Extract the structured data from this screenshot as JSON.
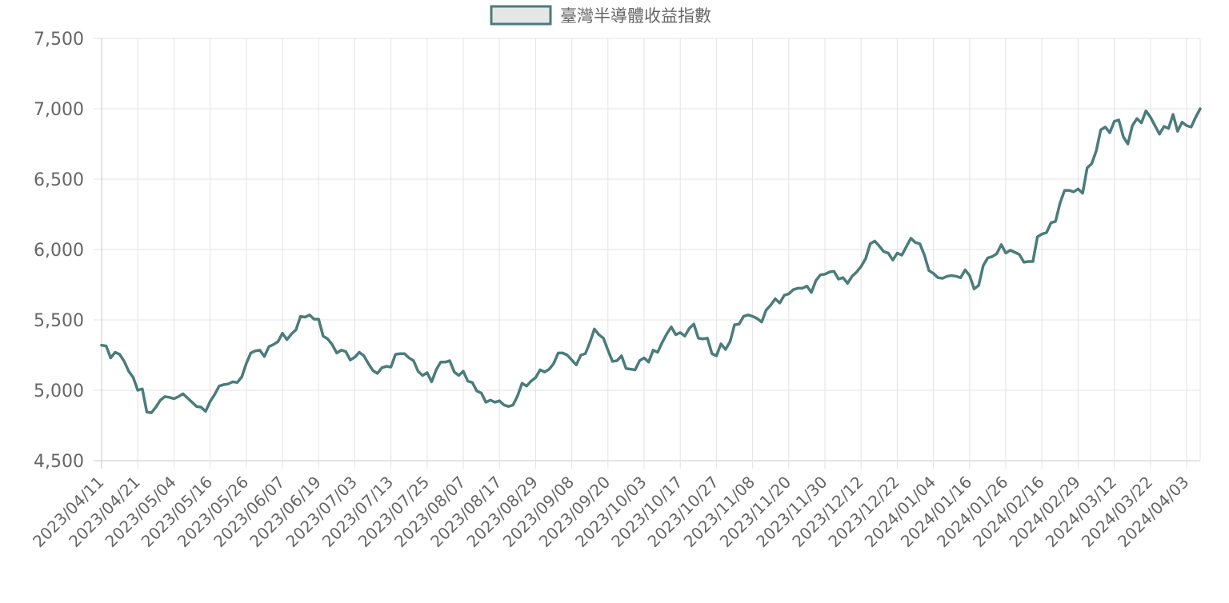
{
  "chart_data": {
    "type": "line",
    "legend": {
      "position": "top",
      "entry": "臺灣半導體收益指數"
    },
    "colors": {
      "line": "#4a7c7b",
      "legend_fill": "#e6e6e6",
      "grid": "#e3e3e3",
      "text": "#666666"
    },
    "grid": true,
    "ylim": [
      4500,
      7500
    ],
    "yticks": [
      {
        "value": 7500,
        "label": "7,500"
      },
      {
        "value": 7000,
        "label": "7,000"
      },
      {
        "value": 6500,
        "label": "6,500"
      },
      {
        "value": 6000,
        "label": "6,000"
      },
      {
        "value": 5500,
        "label": "5,500"
      },
      {
        "value": 5000,
        "label": "5,000"
      },
      {
        "value": 4500,
        "label": "4,500"
      }
    ],
    "xticks": [
      "2023/04/11",
      "2023/04/21",
      "2023/05/04",
      "2023/05/16",
      "2023/05/26",
      "2023/06/07",
      "2023/06/19",
      "2023/07/03",
      "2023/07/13",
      "2023/07/25",
      "2023/08/07",
      "2023/08/17",
      "2023/08/29",
      "2023/09/08",
      "2023/09/20",
      "2023/10/03",
      "2023/10/17",
      "2023/10/27",
      "2023/11/08",
      "2023/11/20",
      "2023/11/30",
      "2023/12/12",
      "2023/12/22",
      "2024/01/04",
      "2024/01/16",
      "2024/01/26",
      "2024/02/16",
      "2024/02/29",
      "2024/03/12",
      "2024/03/22",
      "2024/04/03"
    ],
    "series": [
      {
        "name": "臺灣半導體收益指數",
        "values": [
          5320,
          5315,
          5230,
          5270,
          5255,
          5205,
          5135,
          5090,
          5000,
          5010,
          4845,
          4840,
          4880,
          4930,
          4955,
          4950,
          4940,
          4955,
          4975,
          4945,
          4915,
          4885,
          4880,
          4850,
          4920,
          4970,
          5030,
          5040,
          5045,
          5060,
          5055,
          5095,
          5190,
          5265,
          5280,
          5285,
          5240,
          5310,
          5325,
          5345,
          5405,
          5360,
          5400,
          5430,
          5525,
          5520,
          5535,
          5505,
          5505,
          5385,
          5365,
          5325,
          5265,
          5285,
          5275,
          5215,
          5235,
          5270,
          5245,
          5190,
          5140,
          5120,
          5160,
          5170,
          5165,
          5255,
          5260,
          5260,
          5230,
          5210,
          5135,
          5105,
          5125,
          5060,
          5145,
          5200,
          5200,
          5210,
          5130,
          5105,
          5135,
          5065,
          5055,
          4995,
          4980,
          4915,
          4930,
          4915,
          4925,
          4895,
          4885,
          4895,
          4960,
          5050,
          5030,
          5065,
          5090,
          5145,
          5130,
          5150,
          5190,
          5265,
          5265,
          5250,
          5215,
          5180,
          5250,
          5260,
          5340,
          5435,
          5395,
          5370,
          5285,
          5205,
          5210,
          5245,
          5155,
          5150,
          5145,
          5210,
          5230,
          5200,
          5285,
          5270,
          5340,
          5400,
          5450,
          5395,
          5410,
          5385,
          5440,
          5470,
          5370,
          5365,
          5370,
          5260,
          5245,
          5330,
          5290,
          5345,
          5465,
          5470,
          5525,
          5535,
          5525,
          5510,
          5485,
          5570,
          5605,
          5650,
          5620,
          5675,
          5685,
          5715,
          5725,
          5725,
          5740,
          5695,
          5780,
          5820,
          5825,
          5840,
          5845,
          5790,
          5800,
          5760,
          5810,
          5840,
          5880,
          5935,
          6040,
          6060,
          6025,
          5985,
          5975,
          5925,
          5975,
          5960,
          6020,
          6080,
          6050,
          6040,
          5960,
          5850,
          5830,
          5800,
          5795,
          5810,
          5815,
          5810,
          5800,
          5855,
          5815,
          5720,
          5745,
          5885,
          5940,
          5950,
          5970,
          6035,
          5975,
          5995,
          5980,
          5965,
          5910,
          5915,
          5915,
          6090,
          6110,
          6120,
          6190,
          6200,
          6330,
          6420,
          6420,
          6410,
          6430,
          6400,
          6580,
          6610,
          6700,
          6850,
          6870,
          6830,
          6910,
          6920,
          6800,
          6750,
          6880,
          6930,
          6900,
          6985,
          6940,
          6880,
          6820,
          6875,
          6860,
          6960,
          6840,
          6905,
          6880,
          6870,
          6940,
          7000
        ]
      }
    ]
  }
}
